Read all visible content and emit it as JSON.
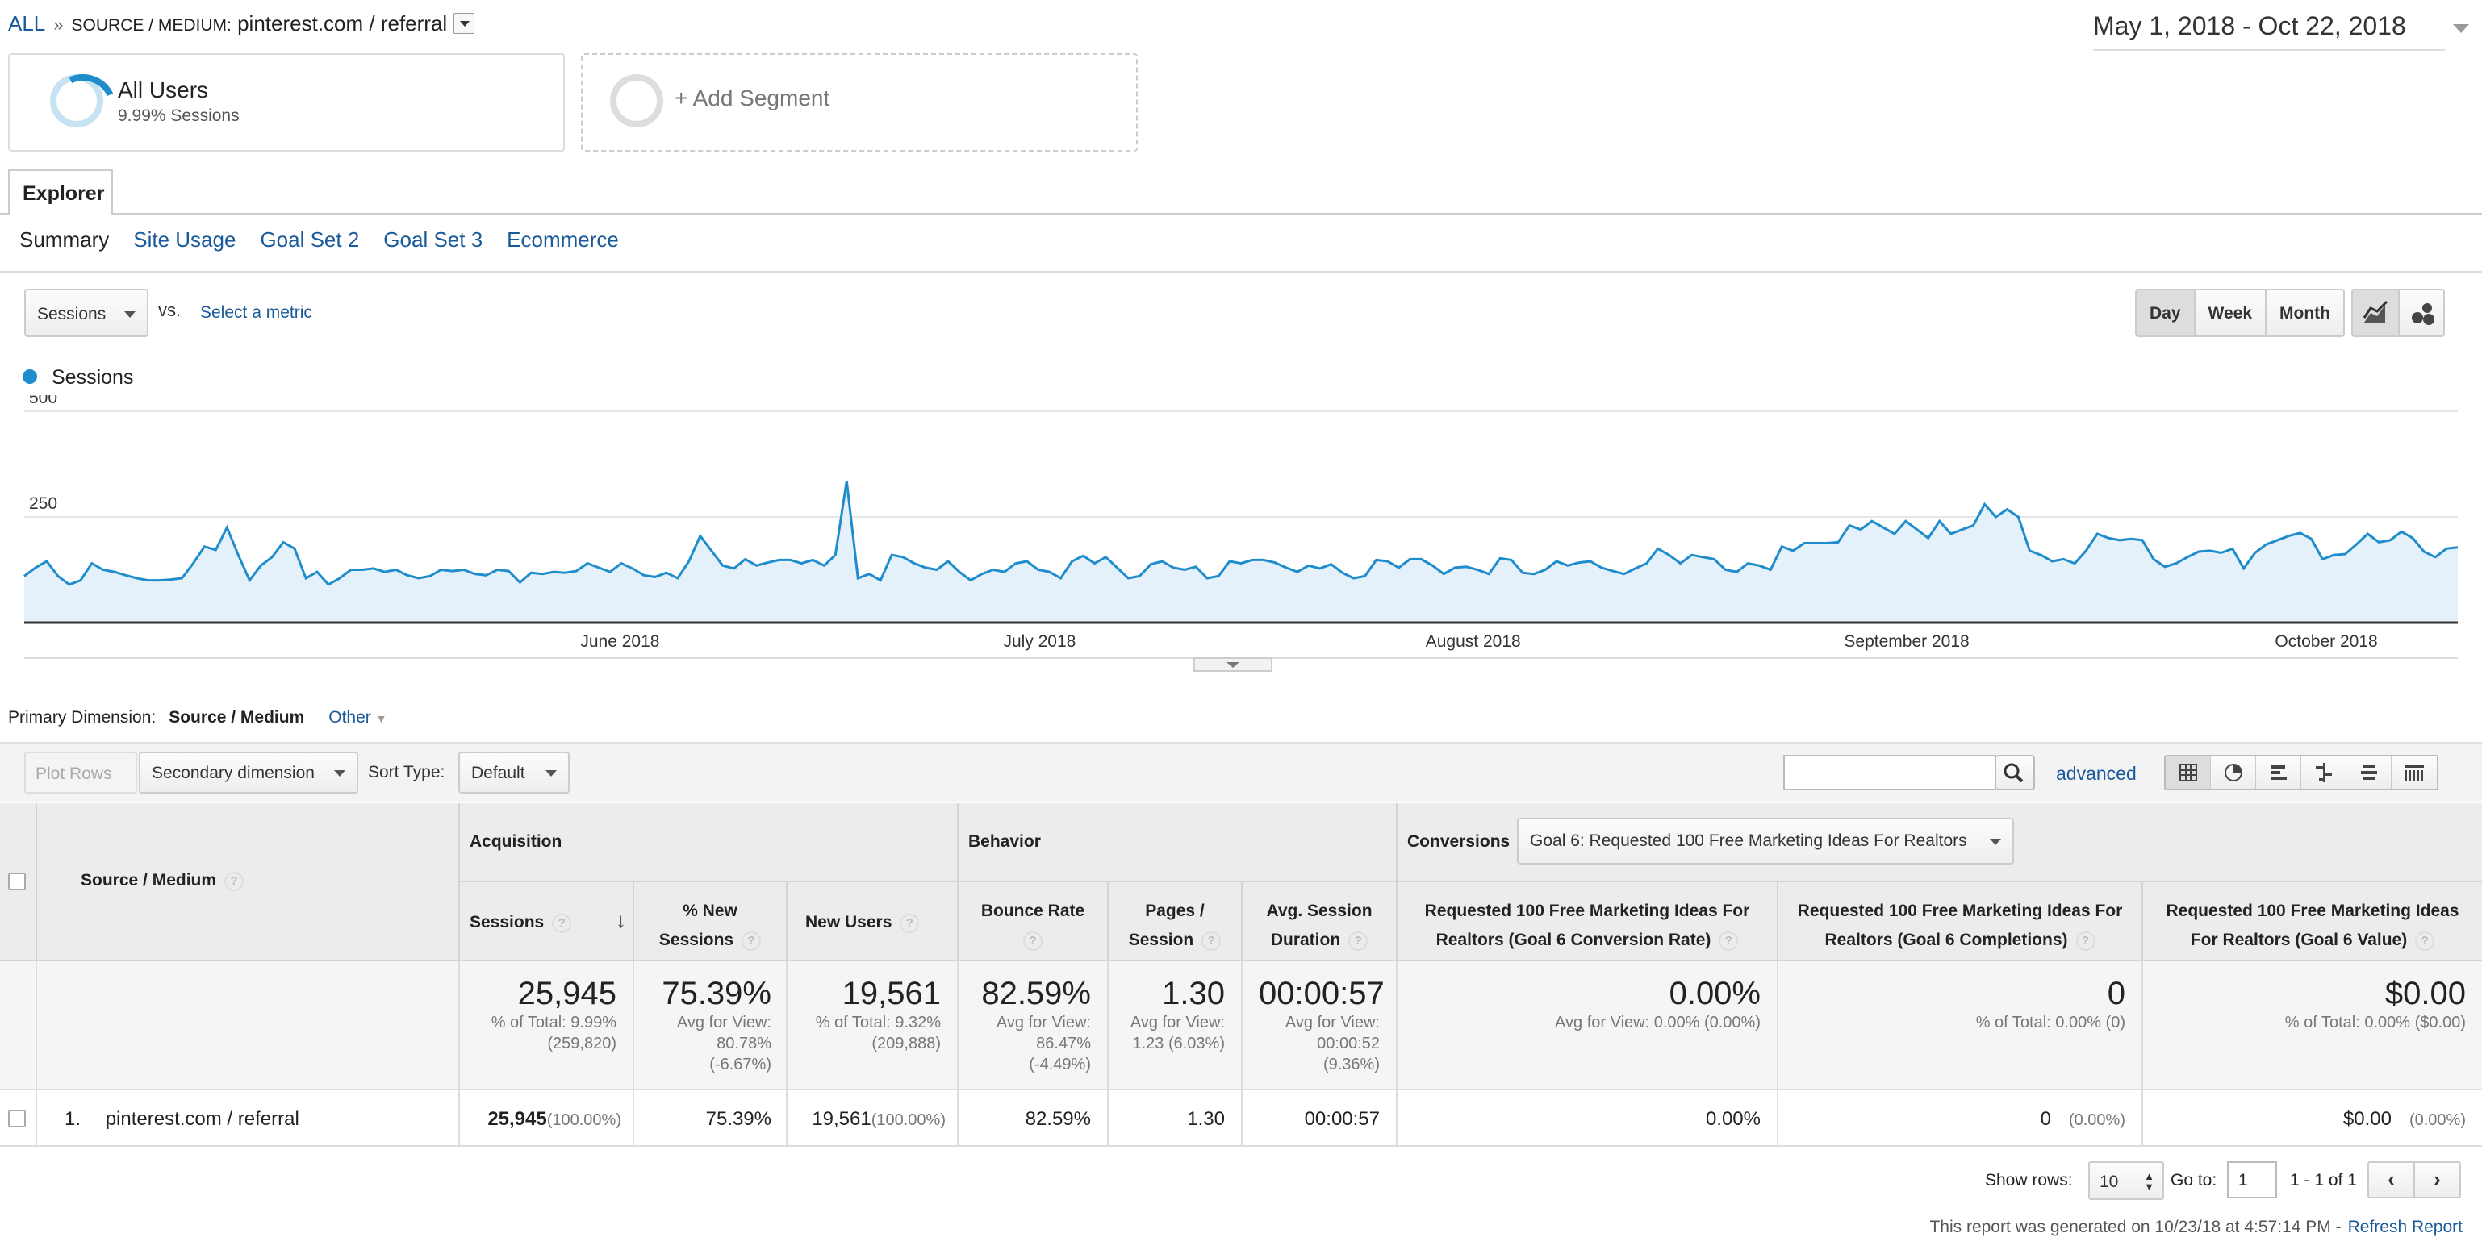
{
  "breadcrumb": {
    "all": "ALL",
    "sep": "»",
    "label": "SOURCE / MEDIUM:",
    "value": "pinterest.com / referral"
  },
  "date_range": "May 1, 2018 - Oct 22, 2018",
  "segments": [
    {
      "title": "All Users",
      "subtitle": "9.99% Sessions"
    },
    {
      "title": "+ Add Segment"
    }
  ],
  "tabs": {
    "explorer": "Explorer"
  },
  "subtabs": [
    "Summary",
    "Site Usage",
    "Goal Set 2",
    "Goal Set 3",
    "Ecommerce"
  ],
  "metric_select": {
    "value": "Sessions",
    "vs": "vs.",
    "select_metric": "Select a metric"
  },
  "periods": [
    "Day",
    "Week",
    "Month"
  ],
  "chart_data": {
    "type": "area",
    "series": [
      {
        "name": "Sessions",
        "color": "#1f8dcb"
      }
    ],
    "y_ticks": [
      "500",
      "250"
    ],
    "ylim": [
      0,
      500
    ],
    "x_ticks": [
      "June 2018",
      "July 2018",
      "August 2018",
      "September 2018",
      "October 2018"
    ],
    "x_range": [
      "2018-05-01",
      "2018-10-22"
    ],
    "values": [
      110,
      130,
      145,
      110,
      90,
      100,
      140,
      125,
      120,
      112,
      105,
      100,
      100,
      102,
      105,
      140,
      180,
      172,
      225,
      160,
      100,
      135,
      155,
      190,
      175,
      105,
      120,
      90,
      105,
      125,
      125,
      128,
      120,
      125,
      112,
      105,
      110,
      125,
      122,
      125,
      115,
      112,
      125,
      122,
      95,
      118,
      115,
      120,
      118,
      122,
      140,
      130,
      120,
      140,
      128,
      112,
      108,
      118,
      105,
      145,
      205,
      170,
      135,
      128,
      150,
      135,
      142,
      148,
      148,
      140,
      148,
      135,
      160,
      335,
      105,
      115,
      100,
      160,
      155,
      140,
      130,
      125,
      145,
      120,
      100,
      115,
      125,
      120,
      140,
      145,
      125,
      120,
      105,
      145,
      158,
      140,
      155,
      130,
      105,
      110,
      138,
      145,
      130,
      125,
      132,
      105,
      110,
      145,
      140,
      148,
      148,
      142,
      130,
      120,
      135,
      128,
      138,
      118,
      105,
      110,
      148,
      145,
      130,
      150,
      150,
      135,
      115,
      130,
      132,
      125,
      115,
      152,
      148,
      118,
      115,
      125,
      145,
      135,
      142,
      145,
      130,
      122,
      115,
      128,
      140,
      175,
      160,
      140,
      160,
      155,
      150,
      125,
      120,
      140,
      135,
      125,
      180,
      170,
      188,
      188,
      188,
      190,
      230,
      220,
      240,
      225,
      210,
      240,
      220,
      200,
      240,
      210,
      220,
      230,
      280,
      250,
      268,
      250,
      170,
      160,
      145,
      150,
      140,
      170,
      210,
      200,
      195,
      198,
      195,
      150,
      132,
      140,
      155,
      168,
      170,
      165,
      175,
      128,
      165,
      185,
      195,
      205,
      212,
      198,
      150,
      160,
      162,
      185,
      210,
      190,
      195,
      215,
      200,
      168,
      155,
      175,
      178
    ],
    "color": "#1f8dcb",
    "fill": "#e5f1fa"
  },
  "primary_dimension": {
    "label": "Primary Dimension:",
    "value": "Source / Medium",
    "other": "Other"
  },
  "toolbar": {
    "plot_rows": "Plot Rows",
    "secondary_dimension": "Secondary dimension",
    "sort_type_label": "Sort Type:",
    "sort_type": "Default",
    "advanced": "advanced"
  },
  "table": {
    "groups": {
      "acquisition": "Acquisition",
      "behavior": "Behavior",
      "conversions": "Conversions",
      "goal_select": "Goal 6: Requested 100 Free Marketing Ideas For Realtors"
    },
    "headers": {
      "source_medium": "Source / Medium",
      "sessions": "Sessions",
      "pct_new_sessions_1": "% New",
      "pct_new_sessions_2": "Sessions",
      "new_users": "New Users",
      "bounce_rate": "Bounce Rate",
      "pages_session_1": "Pages /",
      "pages_session_2": "Session",
      "avg_session_1": "Avg. Session",
      "avg_session_2": "Duration",
      "goal_rate_1": "Requested 100 Free Marketing Ideas For",
      "goal_rate_2": "Realtors (Goal 6 Conversion Rate)",
      "goal_comp_1": "Requested 100 Free Marketing Ideas For",
      "goal_comp_2": "Realtors (Goal 6 Completions)",
      "goal_val_1": "Requested 100 Free Marketing Ideas",
      "goal_val_2": "For Realtors (Goal 6 Value)"
    },
    "totals": {
      "sessions": "25,945",
      "sessions_sub1": "% of Total: 9.99%",
      "sessions_sub2": "(259,820)",
      "new_sessions": "75.39%",
      "new_sessions_sub1": "Avg for View:",
      "new_sessions_sub2": "80.78%",
      "new_sessions_sub3": "(-6.67%)",
      "new_users": "19,561",
      "new_users_sub1": "% of Total: 9.32%",
      "new_users_sub2": "(209,888)",
      "bounce": "82.59%",
      "bounce_sub1": "Avg for View:",
      "bounce_sub2": "86.47%",
      "bounce_sub3": "(-4.49%)",
      "pages": "1.30",
      "pages_sub1": "Avg for View:",
      "pages_sub2": "1.23 (6.03%)",
      "duration": "00:00:57",
      "duration_sub1": "Avg for View:",
      "duration_sub2": "00:00:52",
      "duration_sub3": "(9.36%)",
      "goal_rate": "0.00%",
      "goal_rate_sub": "Avg for View: 0.00% (0.00%)",
      "goal_comp": "0",
      "goal_comp_sub": "% of Total: 0.00% (0)",
      "goal_val": "$0.00",
      "goal_val_sub": "% of Total: 0.00% ($0.00)"
    },
    "rows": [
      {
        "index": "1.",
        "source": "pinterest.com / referral",
        "sessions": "25,945",
        "sessions_pct": "(100.00%)",
        "new_sessions": "75.39%",
        "new_users": "19,561",
        "new_users_pct": "(100.00%)",
        "bounce": "82.59%",
        "pages": "1.30",
        "duration": "00:00:57",
        "goal_rate": "0.00%",
        "goal_comp": "0",
        "goal_comp_pct": "(0.00%)",
        "goal_val": "$0.00",
        "goal_val_pct": "(0.00%)"
      }
    ]
  },
  "pagination": {
    "show_rows_label": "Show rows:",
    "show_rows": "10",
    "goto_label": "Go to:",
    "goto": "1",
    "count": "1 - 1 of 1"
  },
  "generated": {
    "text": "This report was generated on 10/23/18 at 4:57:14 PM -",
    "refresh": "Refresh Report"
  }
}
